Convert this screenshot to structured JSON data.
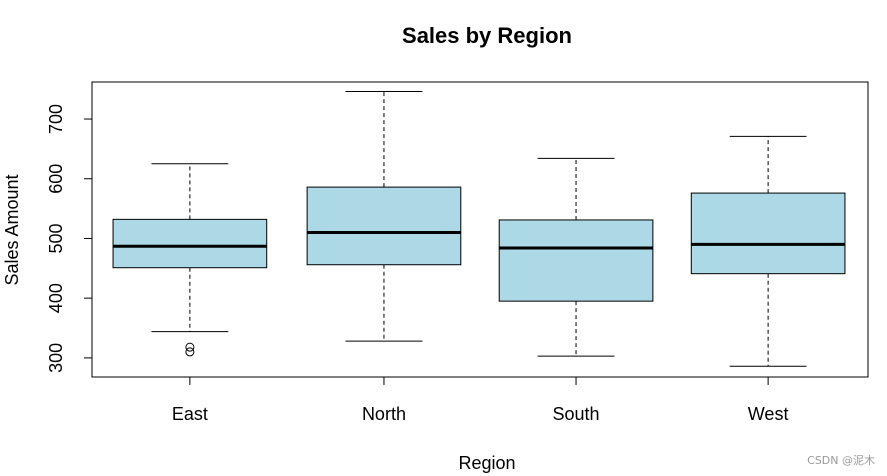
{
  "chart_data": {
    "type": "boxplot",
    "title": "Sales by Region",
    "xlabel": "Region",
    "ylabel": "Sales Amount",
    "ylim": [
      268,
      762
    ],
    "yticks": [
      300,
      400,
      500,
      600,
      700
    ],
    "grid": false,
    "box_color": "#add8e6",
    "categories": [
      "East",
      "North",
      "South",
      "West"
    ],
    "boxes": [
      {
        "category": "East",
        "min": 344,
        "q1": 451,
        "median": 487,
        "q3": 532,
        "max": 625,
        "outliers": [
          310,
          318
        ]
      },
      {
        "category": "North",
        "min": 328,
        "q1": 456,
        "median": 510,
        "q3": 586,
        "max": 746,
        "outliers": []
      },
      {
        "category": "South",
        "min": 303,
        "q1": 395,
        "median": 484,
        "q3": 531,
        "max": 634,
        "outliers": []
      },
      {
        "category": "West",
        "min": 286,
        "q1": 441,
        "median": 490,
        "q3": 576,
        "max": 671,
        "outliers": []
      }
    ]
  },
  "watermark": "CSDN @泥木"
}
